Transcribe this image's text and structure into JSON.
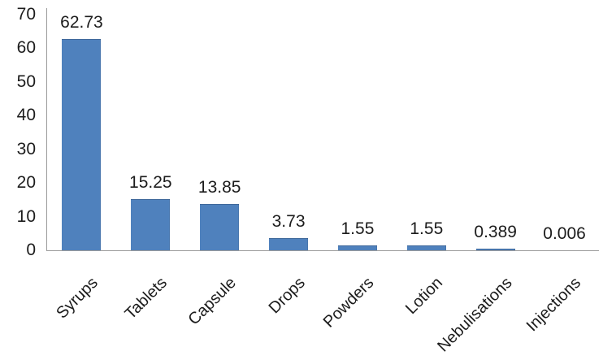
{
  "chart_data": {
    "type": "bar",
    "title": "",
    "xlabel": "",
    "ylabel": "",
    "categories": [
      "Syrups",
      "Tablets",
      "Capsule",
      "Drops",
      "Powders",
      "Lotion",
      "Nebulisations",
      "Injections"
    ],
    "values": [
      62.73,
      15.25,
      13.85,
      3.73,
      1.55,
      1.55,
      0.389,
      0.006
    ],
    "value_labels": [
      "62.73",
      "15.25",
      "13.85",
      "3.73",
      "1.55",
      "1.55",
      "0.389",
      "0.006"
    ],
    "yticks": [
      0,
      10,
      20,
      30,
      40,
      50,
      60,
      70
    ],
    "ylim": [
      0,
      70
    ],
    "grid": false,
    "legend": null,
    "data_labels_shown": true,
    "x_label_rotation_deg": 45,
    "bar_color": "#4f81bd",
    "axis_color": "#9b9b9b",
    "text_color": "#1c1c1c",
    "background_color": "#ffffff"
  }
}
